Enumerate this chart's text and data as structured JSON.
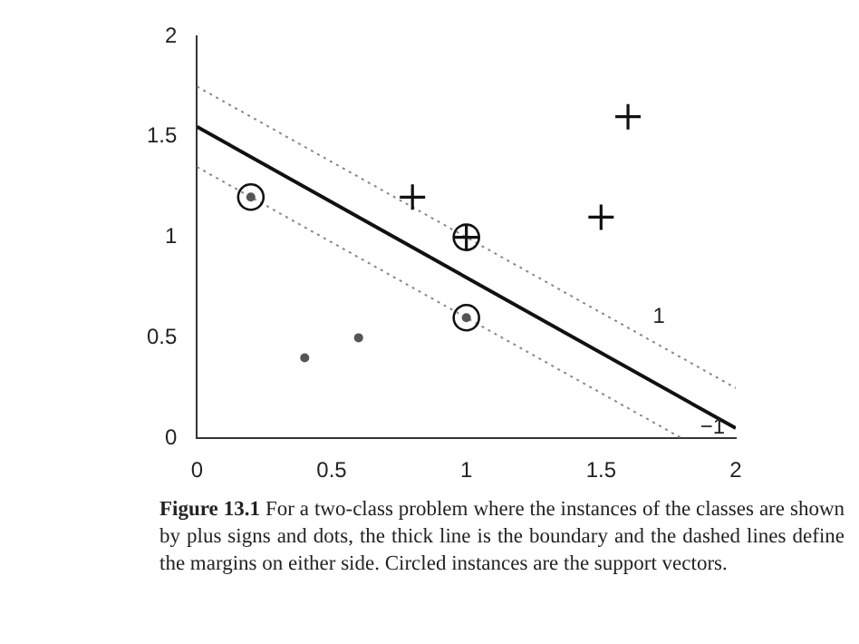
{
  "chart_data": {
    "type": "scatter",
    "xlim": [
      0,
      2
    ],
    "ylim": [
      0,
      2
    ],
    "xticks": [
      0,
      0.5,
      1,
      1.5,
      2
    ],
    "yticks": [
      0,
      0.5,
      1,
      1.5,
      2
    ],
    "grid": false,
    "legend": false,
    "series": [
      {
        "marker": "cross",
        "color": "#111111",
        "x": [
          0.8,
          1.5,
          1.6,
          1.0
        ],
        "values": [
          1.2,
          1.1,
          1.6,
          1.0
        ]
      },
      {
        "marker": "circle",
        "color": "#555555",
        "x": [
          0.2,
          1.0,
          0.4,
          0.6
        ],
        "values": [
          1.2,
          0.6,
          0.4,
          0.5
        ]
      },
      {
        "marker": "circle",
        "color": "#111111",
        "x": [
          0.2,
          1.0,
          1.0
        ],
        "values": [
          1.2,
          1.0,
          0.6
        ]
      },
      {
        "type": "line",
        "marker": "none",
        "line_style": "solid",
        "color": "#111111",
        "x": [
          0,
          2
        ],
        "values": [
          1.55,
          0.05
        ]
      },
      {
        "type": "line",
        "marker": "none",
        "line_style": "dotted",
        "color": "#888888",
        "x": [
          0,
          2
        ],
        "values": [
          1.75,
          0.25
        ]
      },
      {
        "type": "line",
        "marker": "none",
        "line_style": "dotted",
        "color": "#888888",
        "x": [
          0,
          1.8
        ],
        "values": [
          1.35,
          0
        ]
      }
    ],
    "annotations": [
      {
        "text": "1",
        "x": 1.6,
        "y": 0.55
      },
      {
        "text": "−1",
        "x": 1.8,
        "y": 0
      },
      "Figure 13.1",
      "For a two-class problem where the instances of the classes are shown by plus signs and dots, the thick line is the boundary and the dashed lines define the margins on either side. Circled instances are the support vectors."
    ]
  }
}
